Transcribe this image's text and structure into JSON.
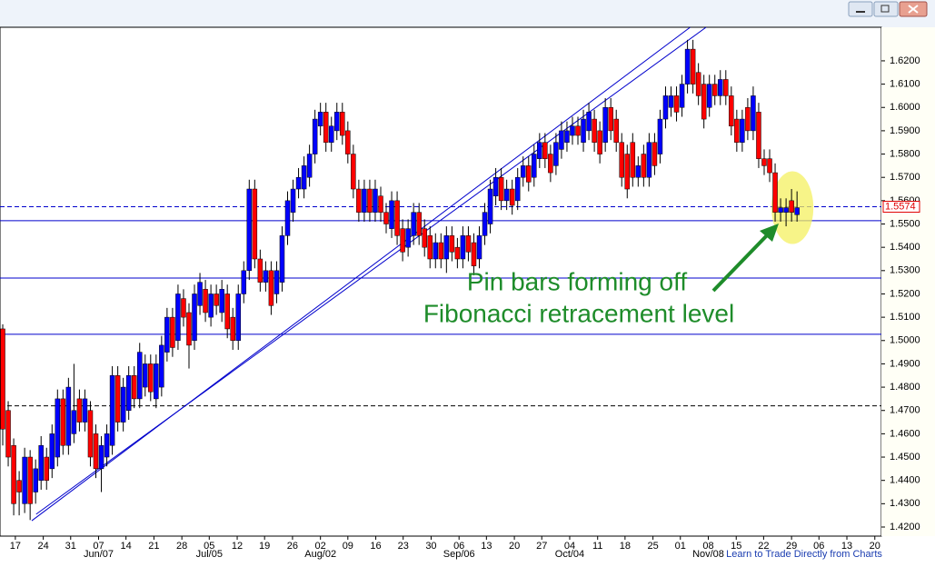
{
  "chart_data": {
    "type": "candlestick",
    "up_color": "#0000ff",
    "down_color": "#ff0000",
    "ylim": [
      1.4161,
      1.6344
    ],
    "xlim": [
      -0.5,
      160.4
    ],
    "yticks": [
      {
        "value": 1.42,
        "label": "1.4200"
      },
      {
        "value": 1.43,
        "label": "1.4300"
      },
      {
        "value": 1.44,
        "label": "1.4400"
      },
      {
        "value": 1.45,
        "label": "1.4500"
      },
      {
        "value": 1.46,
        "label": "1.4600"
      },
      {
        "value": 1.47,
        "label": "1.4700"
      },
      {
        "value": 1.48,
        "label": "1.4800"
      },
      {
        "value": 1.49,
        "label": "1.4900"
      },
      {
        "value": 1.5,
        "label": "1.5000"
      },
      {
        "value": 1.51,
        "label": "1.5100"
      },
      {
        "value": 1.52,
        "label": "1.5200"
      },
      {
        "value": 1.53,
        "label": "1.5300"
      },
      {
        "value": 1.54,
        "label": "1.5400"
      },
      {
        "value": 1.55,
        "label": "1.5500"
      },
      {
        "value": 1.56,
        "label": "1.5600"
      },
      {
        "value": 1.57,
        "label": "1.5700"
      },
      {
        "value": 1.58,
        "label": "1.5800"
      },
      {
        "value": 1.59,
        "label": "1.5900"
      },
      {
        "value": 1.6,
        "label": "1.6000"
      },
      {
        "value": 1.61,
        "label": "1.6100"
      },
      {
        "value": 1.62,
        "label": "1.6200"
      }
    ],
    "xticks": [
      {
        "value": 2.3,
        "label": "17"
      },
      {
        "value": 7.4,
        "label": "24"
      },
      {
        "value": 12.4,
        "label": "31"
      },
      {
        "value": 17.5,
        "label": "07"
      },
      {
        "value": 22.5,
        "label": "14"
      },
      {
        "value": 27.6,
        "label": "21"
      },
      {
        "value": 32.7,
        "label": "28"
      },
      {
        "value": 37.7,
        "label": "05"
      },
      {
        "value": 42.8,
        "label": "12"
      },
      {
        "value": 47.8,
        "label": "19"
      },
      {
        "value": 52.9,
        "label": "26"
      },
      {
        "value": 58.0,
        "label": "02"
      },
      {
        "value": 63.0,
        "label": "09"
      },
      {
        "value": 68.1,
        "label": "16"
      },
      {
        "value": 73.1,
        "label": "23"
      },
      {
        "value": 78.2,
        "label": "30"
      },
      {
        "value": 83.3,
        "label": "06"
      },
      {
        "value": 88.3,
        "label": "13"
      },
      {
        "value": 93.4,
        "label": "20"
      },
      {
        "value": 98.4,
        "label": "27"
      },
      {
        "value": 103.5,
        "label": "04"
      },
      {
        "value": 108.6,
        "label": "11"
      },
      {
        "value": 113.6,
        "label": "18"
      },
      {
        "value": 118.7,
        "label": "25"
      },
      {
        "value": 123.7,
        "label": "01"
      },
      {
        "value": 128.8,
        "label": "08"
      },
      {
        "value": 133.9,
        "label": "15"
      },
      {
        "value": 138.9,
        "label": "22"
      },
      {
        "value": 144.0,
        "label": "29"
      },
      {
        "value": 149.0,
        "label": "06"
      },
      {
        "value": 154.1,
        "label": "13"
      },
      {
        "value": 159.2,
        "label": "20"
      }
    ],
    "month_labels": [
      {
        "value": 17.5,
        "label": "Jun/07"
      },
      {
        "value": 37.7,
        "label": "Jul/05"
      },
      {
        "value": 58.0,
        "label": "Aug/02"
      },
      {
        "value": 83.3,
        "label": "Sep/06"
      },
      {
        "value": 103.5,
        "label": "Oct/04"
      },
      {
        "value": 128.8,
        "label": "Nov/08"
      }
    ],
    "hlines": [
      {
        "value": 1.5574,
        "color": "#0000cc",
        "dashed": true,
        "labeled": true
      },
      {
        "value": 1.5514,
        "color": "#0000cc",
        "dashed": false,
        "labeled": false
      },
      {
        "value": 1.5268,
        "color": "#0000cc",
        "dashed": false,
        "labeled": false
      },
      {
        "value": 1.5027,
        "color": "#0000cc",
        "dashed": false,
        "labeled": false
      },
      {
        "value": 1.472,
        "color": "#000000",
        "dashed": true,
        "labeled": false
      }
    ],
    "trendlines": [
      {
        "x": [
          5.3,
          125.5
        ],
        "y": [
          1.4227,
          1.6344
        ],
        "color": "#0000cc"
      },
      {
        "x": [
          6.1,
          128.4
        ],
        "y": [
          1.4255,
          1.6344
        ],
        "color": "#0000cc"
      }
    ],
    "annotation": [
      "Pin bars forming off",
      "Fibonacci retracement level"
    ],
    "footer": "Learn to Trade Directly from Charts",
    "candles": [
      [
        1.505,
        1.507,
        1.455,
        1.462
      ],
      [
        1.47,
        1.474,
        1.446,
        1.45
      ],
      [
        1.455,
        1.458,
        1.425,
        1.43
      ],
      [
        1.44,
        1.444,
        1.425,
        1.435
      ],
      [
        1.43,
        1.454,
        1.426,
        1.45
      ],
      [
        1.45,
        1.453,
        1.423,
        1.43
      ],
      [
        1.435,
        1.449,
        1.43,
        1.445
      ],
      [
        1.44,
        1.459,
        1.436,
        1.455
      ],
      [
        1.45,
        1.454,
        1.436,
        1.44
      ],
      [
        1.445,
        1.464,
        1.441,
        1.46
      ],
      [
        1.45,
        1.479,
        1.446,
        1.475
      ],
      [
        1.475,
        1.479,
        1.451,
        1.455
      ],
      [
        1.455,
        1.484,
        1.451,
        1.48
      ],
      [
        1.46,
        1.49,
        1.456,
        1.47
      ],
      [
        1.475,
        1.479,
        1.461,
        1.465
      ],
      [
        1.465,
        1.479,
        1.461,
        1.475
      ],
      [
        1.47,
        1.474,
        1.446,
        1.45
      ],
      [
        1.46,
        1.464,
        1.441,
        1.445
      ],
      [
        1.445,
        1.459,
        1.435,
        1.455
      ],
      [
        1.45,
        1.464,
        1.446,
        1.46
      ],
      [
        1.455,
        1.489,
        1.451,
        1.485
      ],
      [
        1.485,
        1.489,
        1.461,
        1.465
      ],
      [
        1.465,
        1.484,
        1.461,
        1.48
      ],
      [
        1.47,
        1.489,
        1.466,
        1.485
      ],
      [
        1.485,
        1.489,
        1.471,
        1.475
      ],
      [
        1.475,
        1.499,
        1.471,
        1.495
      ],
      [
        1.48,
        1.494,
        1.476,
        1.49
      ],
      [
        1.49,
        1.494,
        1.474,
        1.478
      ],
      [
        1.475,
        1.494,
        1.471,
        1.49
      ],
      [
        1.48,
        1.502,
        1.476,
        1.498
      ],
      [
        1.495,
        1.514,
        1.491,
        1.51
      ],
      [
        1.51,
        1.514,
        1.493,
        1.497
      ],
      [
        1.5,
        1.524,
        1.496,
        1.52
      ],
      [
        1.518,
        1.522,
        1.506,
        1.51
      ],
      [
        1.512,
        1.516,
        1.488,
        1.498
      ],
      [
        1.5,
        1.524,
        1.496,
        1.52
      ],
      [
        1.515,
        1.529,
        1.511,
        1.525
      ],
      [
        1.522,
        1.526,
        1.508,
        1.512
      ],
      [
        1.51,
        1.524,
        1.506,
        1.52
      ],
      [
        1.52,
        1.524,
        1.511,
        1.515
      ],
      [
        1.512,
        1.526,
        1.508,
        1.522
      ],
      [
        1.52,
        1.524,
        1.501,
        1.505
      ],
      [
        1.51,
        1.514,
        1.496,
        1.5
      ],
      [
        1.5,
        1.524,
        1.496,
        1.52
      ],
      [
        1.52,
        1.534,
        1.516,
        1.53
      ],
      [
        1.53,
        1.569,
        1.526,
        1.565
      ],
      [
        1.565,
        1.569,
        1.531,
        1.535
      ],
      [
        1.535,
        1.539,
        1.521,
        1.525
      ],
      [
        1.525,
        1.534,
        1.521,
        1.53
      ],
      [
        1.53,
        1.534,
        1.511,
        1.515
      ],
      [
        1.52,
        1.534,
        1.516,
        1.53
      ],
      [
        1.525,
        1.549,
        1.521,
        1.545
      ],
      [
        1.545,
        1.564,
        1.541,
        1.56
      ],
      [
        1.555,
        1.569,
        1.551,
        1.565
      ],
      [
        1.565,
        1.574,
        1.561,
        1.57
      ],
      [
        1.565,
        1.579,
        1.561,
        1.575
      ],
      [
        1.57,
        1.584,
        1.566,
        1.58
      ],
      [
        1.58,
        1.599,
        1.576,
        1.595
      ],
      [
        1.592,
        1.602,
        1.588,
        1.598
      ],
      [
        1.598,
        1.602,
        1.581,
        1.585
      ],
      [
        1.585,
        1.596,
        1.581,
        1.592
      ],
      [
        1.59,
        1.602,
        1.586,
        1.598
      ],
      [
        1.598,
        1.602,
        1.584,
        1.588
      ],
      [
        1.59,
        1.594,
        1.576,
        1.58
      ],
      [
        1.58,
        1.584,
        1.561,
        1.565
      ],
      [
        1.565,
        1.569,
        1.551,
        1.555
      ],
      [
        1.555,
        1.569,
        1.551,
        1.565
      ],
      [
        1.565,
        1.569,
        1.551,
        1.555
      ],
      [
        1.555,
        1.569,
        1.551,
        1.565
      ],
      [
        1.562,
        1.566,
        1.551,
        1.555
      ],
      [
        1.555,
        1.559,
        1.546,
        1.55
      ],
      [
        1.548,
        1.564,
        1.544,
        1.56
      ],
      [
        1.56,
        1.564,
        1.541,
        1.545
      ],
      [
        1.548,
        1.552,
        1.534,
        1.538
      ],
      [
        1.54,
        1.552,
        1.536,
        1.548
      ],
      [
        1.545,
        1.559,
        1.541,
        1.555
      ],
      [
        1.555,
        1.559,
        1.541,
        1.545
      ],
      [
        1.548,
        1.552,
        1.536,
        1.54
      ],
      [
        1.545,
        1.549,
        1.531,
        1.535
      ],
      [
        1.535,
        1.546,
        1.531,
        1.542
      ],
      [
        1.542,
        1.546,
        1.531,
        1.535
      ],
      [
        1.535,
        1.549,
        1.529,
        1.545
      ],
      [
        1.545,
        1.549,
        1.534,
        1.538
      ],
      [
        1.54,
        1.544,
        1.531,
        1.535
      ],
      [
        1.535,
        1.549,
        1.531,
        1.545
      ],
      [
        1.545,
        1.549,
        1.534,
        1.538
      ],
      [
        1.542,
        1.546,
        1.528,
        1.532
      ],
      [
        1.535,
        1.549,
        1.531,
        1.545
      ],
      [
        1.545,
        1.559,
        1.541,
        1.555
      ],
      [
        1.55,
        1.569,
        1.546,
        1.565
      ],
      [
        1.562,
        1.574,
        1.558,
        1.57
      ],
      [
        1.57,
        1.574,
        1.556,
        1.56
      ],
      [
        1.56,
        1.569,
        1.556,
        1.565
      ],
      [
        1.565,
        1.569,
        1.554,
        1.558
      ],
      [
        1.56,
        1.574,
        1.556,
        1.57
      ],
      [
        1.57,
        1.579,
        1.566,
        1.575
      ],
      [
        1.575,
        1.579,
        1.564,
        1.568
      ],
      [
        1.57,
        1.584,
        1.566,
        1.58
      ],
      [
        1.578,
        1.589,
        1.574,
        1.585
      ],
      [
        1.585,
        1.589,
        1.574,
        1.578
      ],
      [
        1.58,
        1.584,
        1.568,
        1.572
      ],
      [
        1.575,
        1.589,
        1.571,
        1.585
      ],
      [
        1.582,
        1.594,
        1.578,
        1.59
      ],
      [
        1.585,
        1.594,
        1.581,
        1.59
      ],
      [
        1.588,
        1.596,
        1.584,
        1.592
      ],
      [
        1.592,
        1.596,
        1.584,
        1.588
      ],
      [
        1.585,
        1.599,
        1.581,
        1.595
      ],
      [
        1.59,
        1.602,
        1.586,
        1.598
      ],
      [
        1.595,
        1.599,
        1.581,
        1.585
      ],
      [
        1.59,
        1.594,
        1.576,
        1.58
      ],
      [
        1.585,
        1.604,
        1.581,
        1.6
      ],
      [
        1.6,
        1.604,
        1.586,
        1.59
      ],
      [
        1.595,
        1.599,
        1.581,
        1.585
      ],
      [
        1.585,
        1.589,
        1.566,
        1.57
      ],
      [
        1.58,
        1.584,
        1.561,
        1.565
      ],
      [
        1.585,
        1.589,
        1.566,
        1.57
      ],
      [
        1.57,
        1.579,
        1.566,
        1.575
      ],
      [
        1.58,
        1.584,
        1.566,
        1.57
      ],
      [
        1.57,
        1.589,
        1.566,
        1.585
      ],
      [
        1.585,
        1.589,
        1.571,
        1.575
      ],
      [
        1.58,
        1.599,
        1.576,
        1.595
      ],
      [
        1.595,
        1.609,
        1.591,
        1.605
      ],
      [
        1.6,
        1.609,
        1.596,
        1.605
      ],
      [
        1.605,
        1.609,
        1.594,
        1.598
      ],
      [
        1.6,
        1.614,
        1.596,
        1.61
      ],
      [
        1.61,
        1.629,
        1.606,
        1.625
      ],
      [
        1.625,
        1.629,
        1.606,
        1.61
      ],
      [
        1.615,
        1.619,
        1.601,
        1.605
      ],
      [
        1.61,
        1.614,
        1.591,
        1.595
      ],
      [
        1.6,
        1.614,
        1.596,
        1.61
      ],
      [
        1.61,
        1.614,
        1.601,
        1.605
      ],
      [
        1.605,
        1.616,
        1.601,
        1.612
      ],
      [
        1.612,
        1.616,
        1.601,
        1.605
      ],
      [
        1.605,
        1.609,
        1.588,
        1.592
      ],
      [
        1.595,
        1.599,
        1.581,
        1.585
      ],
      [
        1.585,
        1.599,
        1.581,
        1.595
      ],
      [
        1.6,
        1.604,
        1.586,
        1.59
      ],
      [
        1.59,
        1.609,
        1.586,
        1.605
      ],
      [
        1.598,
        1.602,
        1.574,
        1.578
      ],
      [
        1.578,
        1.582,
        1.571,
        1.575
      ],
      [
        1.578,
        1.582,
        1.568,
        1.572
      ],
      [
        1.572,
        1.576,
        1.551,
        1.555
      ],
      [
        1.555,
        1.561,
        1.551,
        1.557
      ],
      [
        1.555,
        1.561,
        1.549,
        1.557
      ],
      [
        1.56,
        1.565,
        1.551,
        1.555
      ],
      [
        1.554,
        1.564,
        1.551,
        1.557
      ]
    ]
  }
}
